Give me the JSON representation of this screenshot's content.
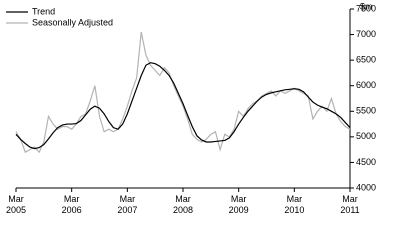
{
  "chart_data": {
    "type": "line",
    "ylabel": "$m",
    "categories": [
      "Mar 2005",
      null,
      null,
      null,
      null,
      null,
      null,
      null,
      null,
      null,
      null,
      null,
      "Mar 2006",
      null,
      null,
      null,
      null,
      null,
      null,
      null,
      null,
      null,
      null,
      null,
      "Mar 2007",
      null,
      null,
      null,
      null,
      null,
      null,
      null,
      null,
      null,
      null,
      null,
      "Mar 2008",
      null,
      null,
      null,
      null,
      null,
      null,
      null,
      null,
      null,
      null,
      null,
      "Mar 2009",
      null,
      null,
      null,
      null,
      null,
      null,
      null,
      null,
      null,
      null,
      null,
      "Mar 2010",
      null,
      null,
      null,
      null,
      null,
      null,
      null,
      null,
      null,
      null,
      null,
      "Mar 2011"
    ],
    "series": [
      {
        "name": "Trend",
        "color": "#000000",
        "values": [
          5050,
          4950,
          4870,
          4800,
          4770,
          4790,
          4850,
          4960,
          5080,
          5180,
          5230,
          5250,
          5250,
          5260,
          5320,
          5430,
          5540,
          5600,
          5560,
          5450,
          5300,
          5180,
          5150,
          5250,
          5450,
          5700,
          5950,
          6200,
          6400,
          6450,
          6430,
          6380,
          6300,
          6200,
          6050,
          5850,
          5650,
          5420,
          5200,
          5020,
          4940,
          4900,
          4900,
          4910,
          4920,
          4930,
          4980,
          5100,
          5250,
          5380,
          5500,
          5600,
          5700,
          5780,
          5830,
          5860,
          5880,
          5900,
          5920,
          5930,
          5940,
          5930,
          5880,
          5780,
          5680,
          5620,
          5580,
          5550,
          5500,
          5450,
          5380,
          5280,
          5180
        ]
      },
      {
        "name": "Seasonally Adjusted",
        "color": "#b3b3b3",
        "values": [
          5100,
          4950,
          4700,
          4750,
          4800,
          4700,
          4900,
          5400,
          5250,
          5150,
          5200,
          5200,
          5150,
          5250,
          5400,
          5450,
          5700,
          6000,
          5400,
          5100,
          5150,
          5100,
          5150,
          5350,
          5600,
          5900,
          6150,
          7050,
          6600,
          6400,
          6300,
          6200,
          6350,
          6250,
          6000,
          5800,
          5600,
          5350,
          5050,
          4950,
          4900,
          4950,
          5050,
          5100,
          4750,
          5050,
          5000,
          5150,
          5500,
          5400,
          5550,
          5650,
          5700,
          5800,
          5850,
          5900,
          5800,
          5900,
          5850,
          5900,
          5950,
          5900,
          5850,
          5800,
          5350,
          5500,
          5600,
          5500,
          5750,
          5450,
          5300,
          5200,
          5150
        ]
      }
    ],
    "ylim": [
      4000,
      7500
    ],
    "yticks": [
      4000,
      4500,
      5000,
      5500,
      6000,
      6500,
      7000,
      7500
    ],
    "legend": "upper left"
  }
}
